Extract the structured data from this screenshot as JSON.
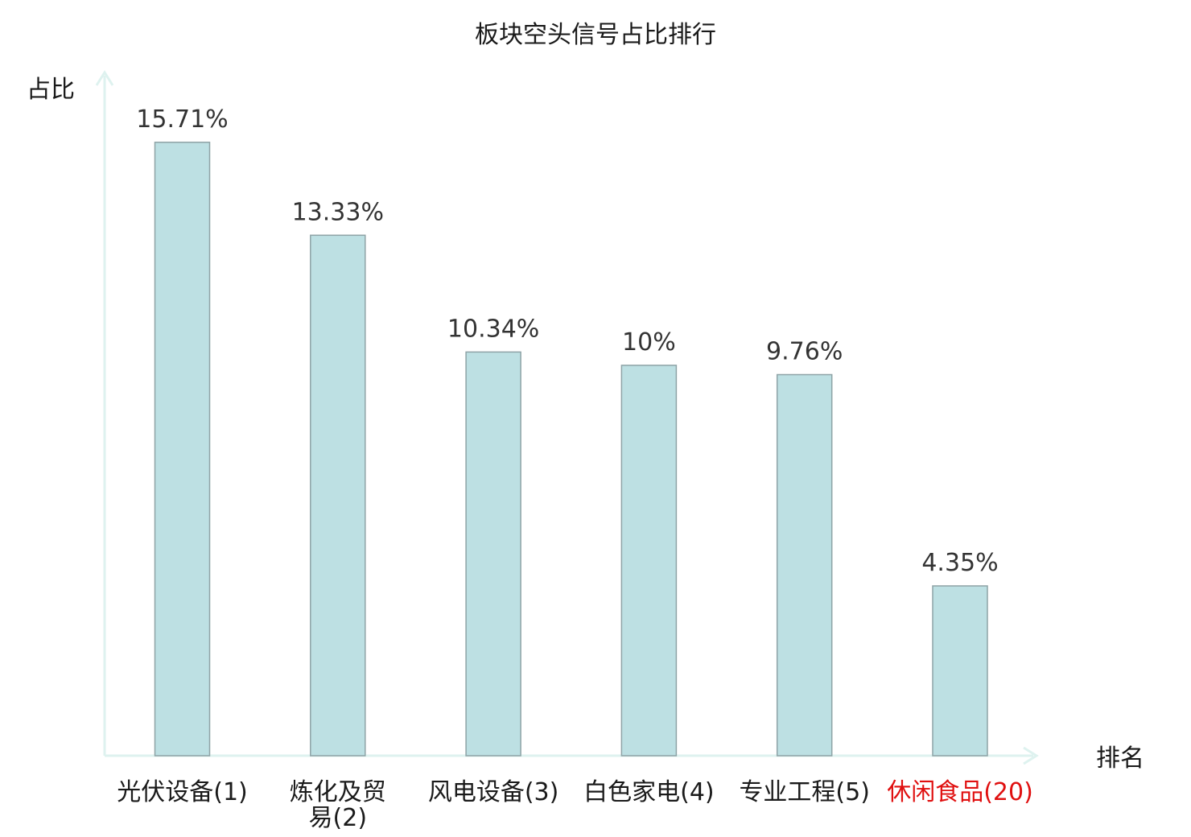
{
  "chart_data": {
    "type": "bar",
    "title": "板块空头信号占比排行",
    "ylabel": "占比",
    "xlabel": "排名",
    "categories": [
      [
        "光伏设备(1)"
      ],
      [
        "炼化及贸",
        "易(2)"
      ],
      [
        "风电设备(3)"
      ],
      [
        "白色家电(4)"
      ],
      [
        "专业工程(5)"
      ],
      [
        "休闲食品(20)"
      ]
    ],
    "values": [
      15.71,
      13.33,
      10.34,
      10,
      9.76,
      4.35
    ],
    "value_labels": [
      "15.71%",
      "13.33%",
      "10.34%",
      "10%",
      "9.76%",
      "4.35%"
    ],
    "highlight_index": 5,
    "ylim": [
      0,
      17.5
    ],
    "grid": false,
    "colors": {
      "bar_fill": "#bde0e3",
      "bar_stroke": "#8ea3a6",
      "axis": "#def2ef",
      "label": "#1a1a1a",
      "highlight_label": "#e01010"
    }
  }
}
